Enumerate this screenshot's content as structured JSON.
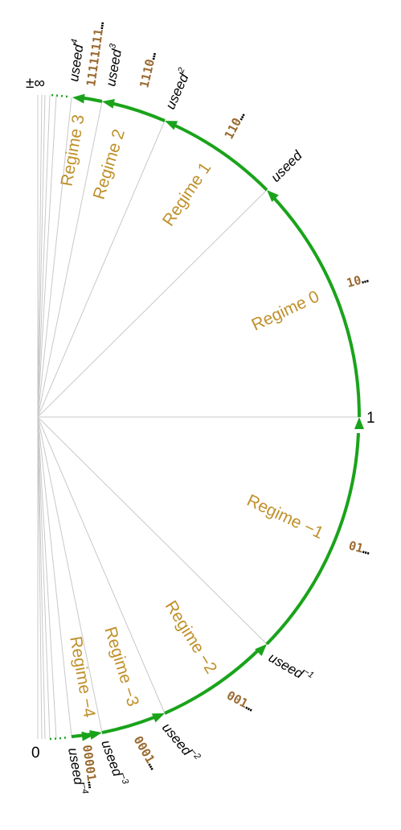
{
  "endpoints": {
    "infinity": "±∞",
    "one": "1",
    "zero": "0"
  },
  "regimes": [
    "Regime 3",
    "Regime 2",
    "Regime 1",
    "Regime 0",
    "Regime −1",
    "Regime −2",
    "Regime −3",
    "Regime −4"
  ],
  "bit_prefixes": {
    "p4": "1111",
    "p3": "1110",
    "p2": "110",
    "p1": "10",
    "m1": "01",
    "m2": "001",
    "m3": "0001",
    "m4": "00001",
    "ellipsis": "…"
  },
  "powers": {
    "base": "useed",
    "p4": "4",
    "p3": "3",
    "p2": "2",
    "m1": "−1",
    "m2": "−2",
    "m3": "−3",
    "m4": "−4"
  },
  "colors": {
    "arc": "#1aa31a",
    "regime_text": "#c0902a",
    "bits": "#9a6a30",
    "rays": "#c8c8c8"
  }
}
